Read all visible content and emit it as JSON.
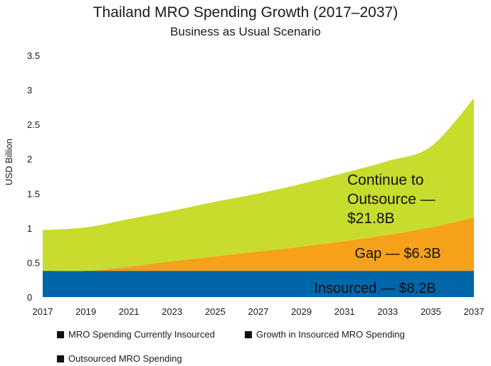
{
  "chart_data": {
    "type": "area",
    "title": "Thailand MRO Spending Growth (2017–2037)",
    "subtitle": "Business as Usual Scenario",
    "xlabel": "",
    "ylabel": "USD Billion",
    "xlim": [
      2017,
      2037
    ],
    "ylim": [
      0,
      3.5
    ],
    "x_ticks": [
      "2017",
      "2019",
      "2021",
      "2023",
      "2025",
      "2027",
      "2029",
      "2031",
      "2033",
      "2035",
      "2037"
    ],
    "y_ticks": [
      "0",
      "0.5",
      "1",
      "1.5",
      "2",
      "2.5",
      "3",
      "3.5"
    ],
    "x": [
      2017,
      2019,
      2021,
      2023,
      2025,
      2027,
      2029,
      2031,
      2033,
      2035,
      2037
    ],
    "stacked": true,
    "series": [
      {
        "name": "MRO Spending Currently Insourced",
        "color": "#0066aa",
        "values": [
          0.38,
          0.38,
          0.38,
          0.38,
          0.38,
          0.38,
          0.38,
          0.38,
          0.38,
          0.38,
          0.38
        ]
      },
      {
        "name": "Growth in Insourced MRO Spending",
        "color": "#f7a11a",
        "values": [
          0.0,
          0.0,
          0.06,
          0.14,
          0.21,
          0.28,
          0.35,
          0.43,
          0.52,
          0.63,
          0.77
        ]
      },
      {
        "name": "Outsourced MRO Spending",
        "color": "#c8dc2e",
        "values": [
          0.59,
          0.63,
          0.69,
          0.73,
          0.79,
          0.84,
          0.91,
          0.99,
          1.07,
          1.17,
          1.73
        ]
      }
    ],
    "annotations": [
      {
        "text": "Insourced — $8.2B"
      },
      {
        "text": "Gap — $6.3B"
      },
      {
        "lines": [
          "Continue to",
          "Outsource —",
          "$21.8B"
        ]
      }
    ],
    "legend": {
      "position": "bottom"
    }
  }
}
